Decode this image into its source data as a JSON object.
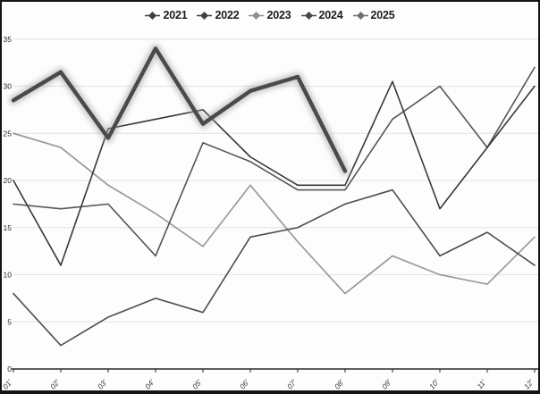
{
  "chart_data": {
    "type": "line",
    "title": "",
    "xlabel": "",
    "ylabel": "",
    "categories": [
      "01'",
      "02'",
      "03'",
      "04'",
      "05'",
      "06'",
      "07'",
      "08'",
      "09'",
      "10'",
      "11'",
      "12'"
    ],
    "yticks": [
      0,
      5,
      10,
      15,
      20,
      25,
      30,
      35
    ],
    "ylim": [
      0,
      35
    ],
    "grid": "horizontal-only",
    "gridline_color": "#e2e2e2",
    "axis_color": "#2a2a2a",
    "legend_position": "top-center",
    "series": [
      {
        "name": "2021",
        "color": "#4d4d4d",
        "width": 1.6,
        "glow": false,
        "values": [
          8,
          2.5,
          5.5,
          7.5,
          6,
          14,
          15,
          17.5,
          19,
          12,
          14.5,
          11
        ]
      },
      {
        "name": "2022",
        "color": "#383838",
        "width": 1.6,
        "glow": false,
        "values": [
          20,
          11,
          25.5,
          26.5,
          27.5,
          22.5,
          19.5,
          19.5,
          30.5,
          17,
          23.5,
          30
        ]
      },
      {
        "name": "2023",
        "color": "#9a9a9a",
        "width": 1.7,
        "glow": false,
        "values": [
          25,
          23.5,
          19.5,
          16.5,
          13,
          19.5,
          13.5,
          8,
          12,
          10,
          9,
          14
        ]
      },
      {
        "name": "2024",
        "color": "#555555",
        "width": 1.6,
        "glow": false,
        "values": [
          17.5,
          17,
          17.5,
          12,
          24,
          22,
          19,
          19,
          26.5,
          30,
          23.5,
          32
        ]
      },
      {
        "name": "2025",
        "color": "#4a4a4a",
        "width": 4.4,
        "glow": true,
        "glow_color": "#a0a0a0",
        "values": [
          28.5,
          31.5,
          24.5,
          34,
          26,
          29.5,
          31,
          21
        ]
      }
    ]
  },
  "legend": {
    "items": [
      {
        "label": "2021",
        "marker_color": "#3d3d3d"
      },
      {
        "label": "2022",
        "marker_color": "#404040"
      },
      {
        "label": "2023",
        "marker_color": "#8e8e8e"
      },
      {
        "label": "2024",
        "marker_color": "#474747"
      },
      {
        "label": "2025",
        "marker_color": "#6f6f6f"
      }
    ]
  }
}
